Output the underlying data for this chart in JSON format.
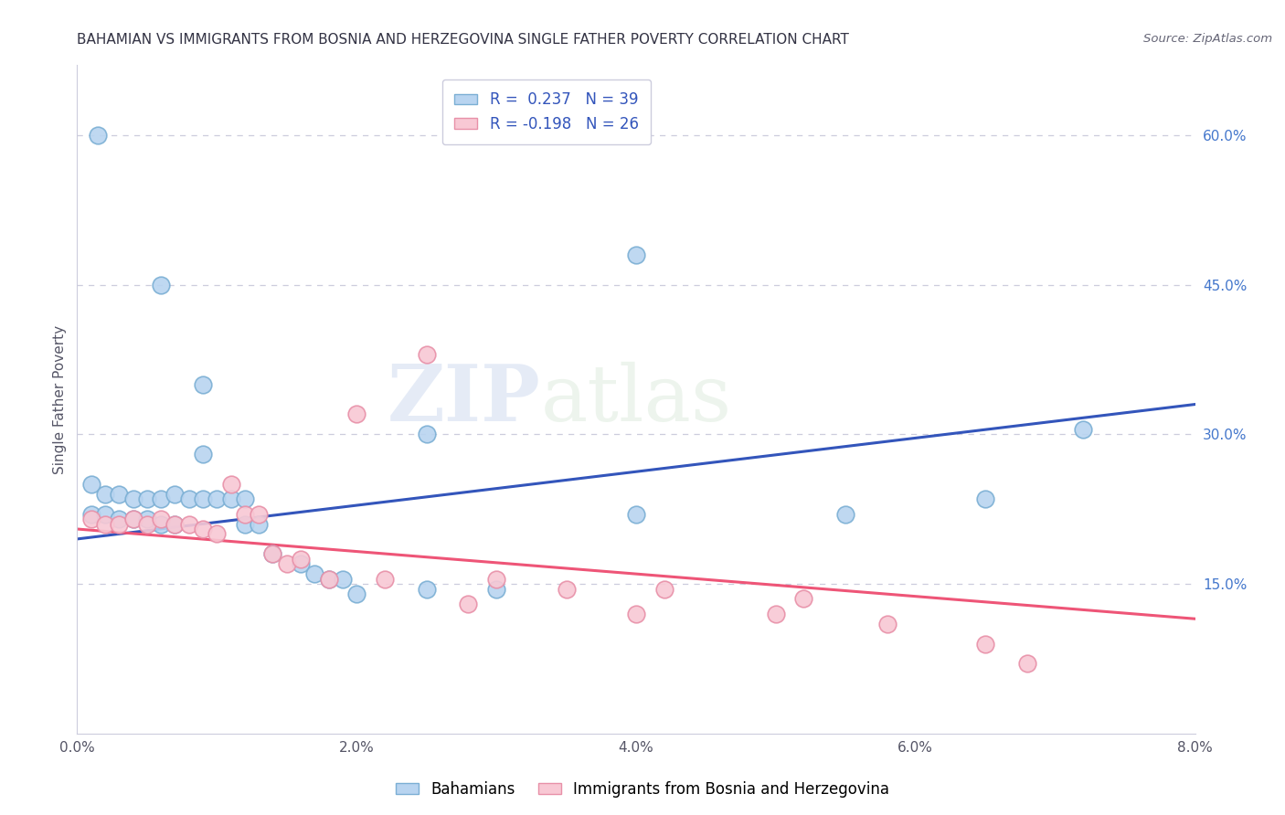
{
  "title": "BAHAMIAN VS IMMIGRANTS FROM BOSNIA AND HERZEGOVINA SINGLE FATHER POVERTY CORRELATION CHART",
  "source": "Source: ZipAtlas.com",
  "ylabel": "Single Father Poverty",
  "right_yticks": [
    "60.0%",
    "45.0%",
    "30.0%",
    "15.0%"
  ],
  "right_ytick_vals": [
    0.6,
    0.45,
    0.3,
    0.15
  ],
  "blue_scatter": [
    [
      0.0015,
      0.6
    ],
    [
      0.006,
      0.45
    ],
    [
      0.009,
      0.35
    ],
    [
      0.009,
      0.28
    ],
    [
      0.001,
      0.25
    ],
    [
      0.002,
      0.24
    ],
    [
      0.003,
      0.24
    ],
    [
      0.004,
      0.235
    ],
    [
      0.005,
      0.235
    ],
    [
      0.006,
      0.235
    ],
    [
      0.007,
      0.24
    ],
    [
      0.008,
      0.235
    ],
    [
      0.009,
      0.235
    ],
    [
      0.01,
      0.235
    ],
    [
      0.011,
      0.235
    ],
    [
      0.012,
      0.235
    ],
    [
      0.001,
      0.22
    ],
    [
      0.002,
      0.22
    ],
    [
      0.003,
      0.215
    ],
    [
      0.004,
      0.215
    ],
    [
      0.005,
      0.215
    ],
    [
      0.006,
      0.21
    ],
    [
      0.007,
      0.21
    ],
    [
      0.012,
      0.21
    ],
    [
      0.013,
      0.21
    ],
    [
      0.014,
      0.18
    ],
    [
      0.016,
      0.17
    ],
    [
      0.017,
      0.16
    ],
    [
      0.018,
      0.155
    ],
    [
      0.019,
      0.155
    ],
    [
      0.02,
      0.14
    ],
    [
      0.025,
      0.3
    ],
    [
      0.025,
      0.145
    ],
    [
      0.03,
      0.145
    ],
    [
      0.04,
      0.22
    ],
    [
      0.04,
      0.48
    ],
    [
      0.055,
      0.22
    ],
    [
      0.065,
      0.235
    ],
    [
      0.072,
      0.305
    ]
  ],
  "pink_scatter": [
    [
      0.001,
      0.215
    ],
    [
      0.002,
      0.21
    ],
    [
      0.003,
      0.21
    ],
    [
      0.004,
      0.215
    ],
    [
      0.005,
      0.21
    ],
    [
      0.006,
      0.215
    ],
    [
      0.007,
      0.21
    ],
    [
      0.008,
      0.21
    ],
    [
      0.009,
      0.205
    ],
    [
      0.01,
      0.2
    ],
    [
      0.011,
      0.25
    ],
    [
      0.012,
      0.22
    ],
    [
      0.013,
      0.22
    ],
    [
      0.014,
      0.18
    ],
    [
      0.015,
      0.17
    ],
    [
      0.016,
      0.175
    ],
    [
      0.018,
      0.155
    ],
    [
      0.02,
      0.32
    ],
    [
      0.022,
      0.155
    ],
    [
      0.025,
      0.38
    ],
    [
      0.028,
      0.13
    ],
    [
      0.03,
      0.155
    ],
    [
      0.035,
      0.145
    ],
    [
      0.04,
      0.12
    ],
    [
      0.042,
      0.145
    ],
    [
      0.05,
      0.12
    ],
    [
      0.052,
      0.135
    ],
    [
      0.058,
      0.11
    ],
    [
      0.065,
      0.09
    ],
    [
      0.068,
      0.07
    ]
  ],
  "blue_line_x": [
    0.0,
    0.08
  ],
  "blue_line_y": [
    0.195,
    0.33
  ],
  "pink_line_x": [
    0.0,
    0.08
  ],
  "pink_line_y": [
    0.205,
    0.115
  ],
  "xlim": [
    0.0,
    0.08
  ],
  "ylim": [
    0.0,
    0.67
  ],
  "blue_scatter_facecolor": "#B8D4F0",
  "blue_scatter_edgecolor": "#7BAFD4",
  "pink_scatter_facecolor": "#F8C8D4",
  "pink_scatter_edgecolor": "#E890A8",
  "blue_line_color": "#3355BB",
  "pink_line_color": "#EE5577",
  "watermark_zip": "ZIP",
  "watermark_atlas": "atlas",
  "grid_color": "#CCCCDD",
  "background_color": "#FFFFFF",
  "xtick_positions": [
    0.0,
    0.02,
    0.04,
    0.06,
    0.08
  ],
  "xtick_labels": [
    "0.0%",
    "2.0%",
    "4.0%",
    "6.0%",
    "8.0%"
  ]
}
